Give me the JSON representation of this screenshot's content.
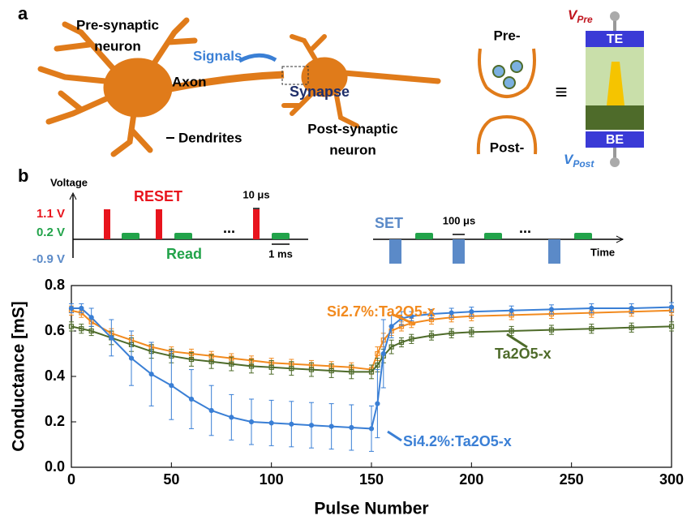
{
  "panel_a": {
    "label": "a",
    "pre_neuron_1": "Pre-synaptic",
    "pre_neuron_2": "neuron",
    "signals": "Signals",
    "axon": "Axon",
    "synapse": "Synapse",
    "dendrites": "Dendrites",
    "post_neuron_1": "Post-synaptic",
    "post_neuron_2": "neuron",
    "pre": "Pre-",
    "post": "Post-",
    "equiv": "≡",
    "te": "TE",
    "be": "BE",
    "v_pre": {
      "main": "V",
      "sub": "Pre"
    },
    "v_post": {
      "main": "V",
      "sub": "Post"
    }
  },
  "panel_b": {
    "label": "b",
    "voltage": "Voltage",
    "v_high": "1.1 V",
    "v_read": "0.2 V",
    "v_low": "-0.9 V",
    "reset": "RESET",
    "read": "Read",
    "reset_width": "10 μs",
    "read_width": "1 ms",
    "ellipsis_1": "...",
    "set": "SET",
    "set_width": "100 μs",
    "ellipsis_2": "...",
    "time": "Time"
  },
  "chart_data": {
    "type": "line",
    "x_label": "Pulse Number",
    "y_label": "Conductance [mS]",
    "x": [
      0,
      5,
      10,
      20,
      30,
      40,
      50,
      60,
      70,
      80,
      90,
      100,
      110,
      120,
      130,
      140,
      150,
      153,
      156,
      160,
      165,
      170,
      180,
      190,
      200,
      220,
      240,
      260,
      280,
      300
    ],
    "xlim": [
      0,
      300
    ],
    "xticks": [
      0,
      50,
      100,
      150,
      200,
      250,
      300
    ],
    "ylim": [
      0,
      0.8
    ],
    "yticks": [
      {
        "value": 0,
        "label": "0.0"
      },
      0.2,
      0.4,
      0.6,
      0.8
    ],
    "series": [
      {
        "name": "Si2.7%:Ta2O5-x",
        "color": "#f28a1e",
        "marker": "square",
        "values": [
          0.69,
          0.68,
          0.64,
          0.59,
          0.56,
          0.53,
          0.51,
          0.5,
          0.49,
          0.48,
          0.47,
          0.46,
          0.455,
          0.45,
          0.445,
          0.44,
          0.43,
          0.5,
          0.56,
          0.6,
          0.62,
          0.635,
          0.65,
          0.66,
          0.665,
          0.67,
          0.675,
          0.68,
          0.685,
          0.69
        ],
        "errors": [
          0.02,
          0.02,
          0.02,
          0.02,
          0.02,
          0.02,
          0.02,
          0.02,
          0.02,
          0.02,
          0.02,
          0.02,
          0.02,
          0.02,
          0.02,
          0.02,
          0.02,
          0.03,
          0.03,
          0.02,
          0.02,
          0.02,
          0.02,
          0.02,
          0.02,
          0.02,
          0.02,
          0.02,
          0.02,
          0.02
        ]
      },
      {
        "name": "Ta2O5-x",
        "color": "#4e6b2a",
        "marker": "square",
        "values": [
          0.62,
          0.61,
          0.6,
          0.57,
          0.54,
          0.51,
          0.49,
          0.475,
          0.465,
          0.455,
          0.445,
          0.44,
          0.435,
          0.43,
          0.425,
          0.42,
          0.42,
          0.45,
          0.49,
          0.53,
          0.55,
          0.565,
          0.58,
          0.59,
          0.595,
          0.6,
          0.605,
          0.61,
          0.615,
          0.62
        ],
        "errors": [
          0.02,
          0.02,
          0.02,
          0.03,
          0.03,
          0.03,
          0.03,
          0.03,
          0.03,
          0.03,
          0.03,
          0.03,
          0.03,
          0.03,
          0.03,
          0.03,
          0.03,
          0.03,
          0.03,
          0.03,
          0.02,
          0.02,
          0.02,
          0.02,
          0.02,
          0.02,
          0.02,
          0.02,
          0.02,
          0.02
        ]
      },
      {
        "name": "Si4.2%:Ta2O5-x",
        "color": "#3a7fd5",
        "marker": "circle",
        "values": [
          0.7,
          0.7,
          0.66,
          0.57,
          0.48,
          0.41,
          0.36,
          0.3,
          0.25,
          0.22,
          0.2,
          0.195,
          0.19,
          0.185,
          0.18,
          0.175,
          0.17,
          0.28,
          0.5,
          0.62,
          0.655,
          0.665,
          0.675,
          0.68,
          0.685,
          0.69,
          0.695,
          0.7,
          0.7,
          0.705
        ],
        "errors": [
          0.02,
          0.02,
          0.04,
          0.08,
          0.12,
          0.14,
          0.15,
          0.13,
          0.11,
          0.1,
          0.1,
          0.1,
          0.1,
          0.1,
          0.1,
          0.1,
          0.1,
          0.15,
          0.15,
          0.05,
          0.03,
          0.02,
          0.02,
          0.02,
          0.02,
          0.02,
          0.02,
          0.02,
          0.02,
          0.02
        ]
      }
    ]
  }
}
